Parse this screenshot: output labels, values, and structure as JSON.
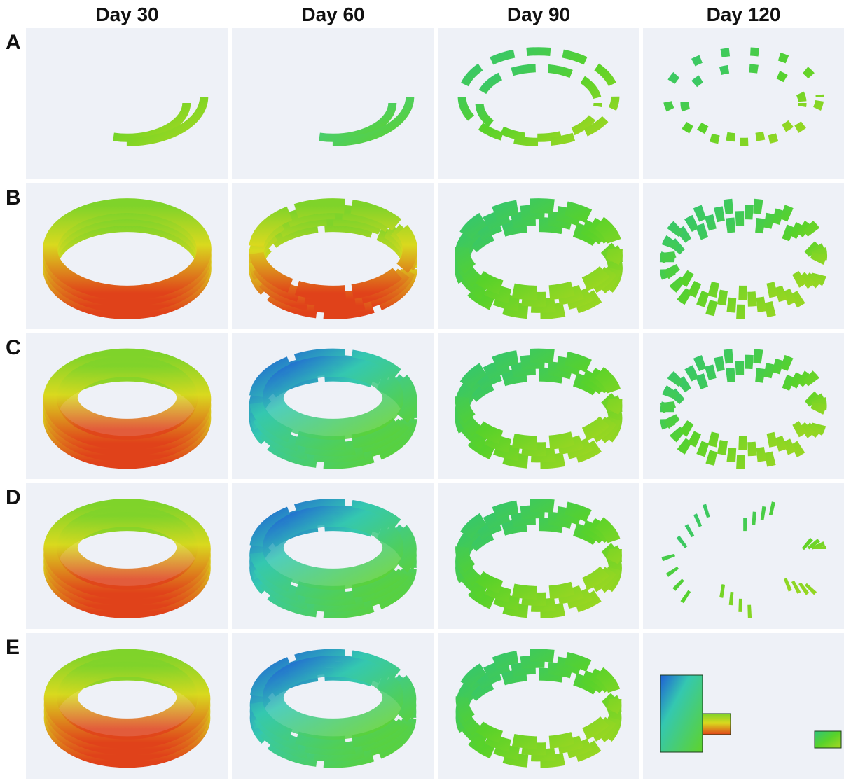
{
  "columns": [
    "Day 30",
    "Day 60",
    "Day 90",
    "Day 120"
  ],
  "rows": [
    "A",
    "B",
    "C",
    "D",
    "E"
  ]
}
